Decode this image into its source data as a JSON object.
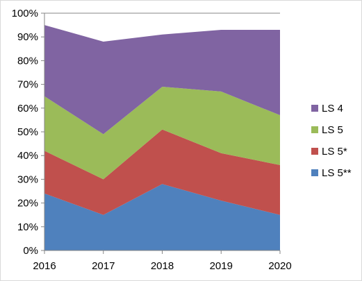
{
  "chart_data": {
    "type": "area",
    "stacked": true,
    "x": [
      "2016",
      "2017",
      "2018",
      "2019",
      "2020"
    ],
    "ylim": [
      0,
      100
    ],
    "y_ticks": [
      "0%",
      "10%",
      "20%",
      "30%",
      "40%",
      "50%",
      "60%",
      "70%",
      "80%",
      "90%",
      "100%"
    ],
    "grid": false,
    "legend_position": "right",
    "series": [
      {
        "name": "LS 5**",
        "color": "#4f81bd",
        "values": [
          24,
          15,
          28,
          21,
          15
        ]
      },
      {
        "name": "LS 5*",
        "color": "#c0504d",
        "values": [
          18,
          15,
          23,
          20,
          21
        ]
      },
      {
        "name": "LS 5",
        "color": "#9bbb59",
        "values": [
          23,
          19,
          18,
          26,
          21
        ]
      },
      {
        "name": "LS 4",
        "color": "#8064a2",
        "values": [
          30,
          39,
          22,
          26,
          36
        ]
      }
    ],
    "legend_order": [
      "LS 4",
      "LS 5",
      "LS 5*",
      "LS 5**"
    ]
  }
}
